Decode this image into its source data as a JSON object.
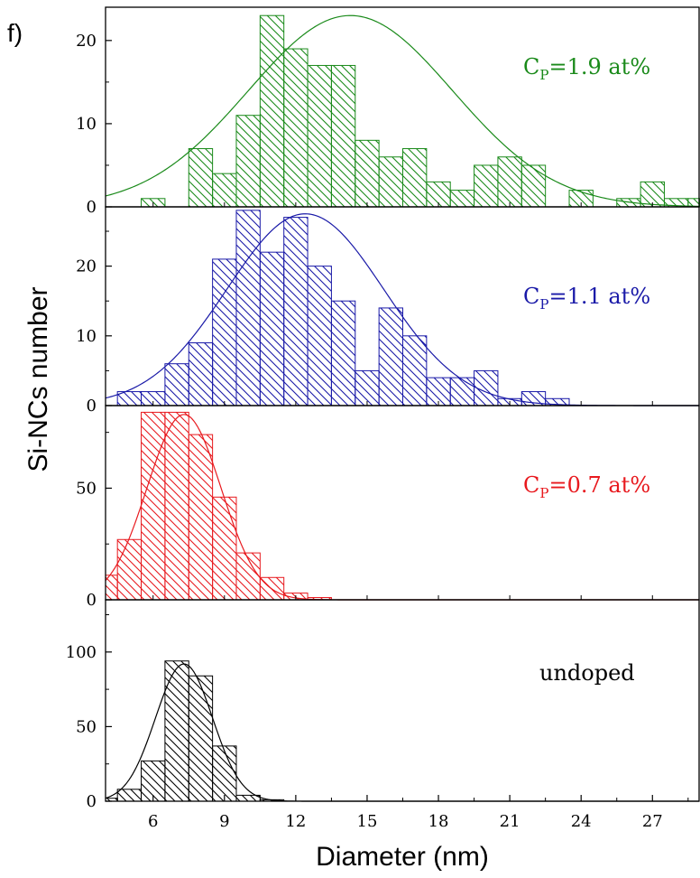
{
  "figure": {
    "panel_letter": "f)",
    "ylabel": "Si-NCs number",
    "xlabel": "Diameter (nm)"
  },
  "chart_data": [
    {
      "type": "bar",
      "name": "C_P=1.9 at%",
      "annotation": {
        "base": "C",
        "sub": "P",
        "rest": "=1.9 at%"
      },
      "color": "#1a8a1a",
      "xlim": [
        4,
        29
      ],
      "ylim": [
        0,
        24
      ],
      "yticks": [
        0,
        10,
        20
      ],
      "yminor": [
        5,
        15
      ],
      "bin_width": 1,
      "x": [
        6,
        8,
        9,
        10,
        11,
        12,
        13,
        14,
        15,
        16,
        17,
        18,
        19,
        20,
        21,
        22,
        24,
        26,
        27,
        28,
        29
      ],
      "values": [
        1,
        7,
        4,
        11,
        23,
        19,
        17,
        17,
        8,
        6,
        7,
        3,
        2,
        5,
        6,
        5,
        2,
        1,
        3,
        1,
        1
      ],
      "fit": {
        "center": 14.3,
        "sigma": 4.3,
        "amplitude": 23
      }
    },
    {
      "type": "bar",
      "name": "C_P=1.1 at%",
      "annotation": {
        "base": "C",
        "sub": "P",
        "rest": "=1.1 at%"
      },
      "color": "#1a1aa8",
      "xlim": [
        4,
        29
      ],
      "ylim": [
        0,
        28.5
      ],
      "yticks": [
        0,
        10,
        20
      ],
      "yminor": [
        5,
        15,
        25
      ],
      "bin_width": 1,
      "x": [
        5,
        6,
        7,
        8,
        9,
        10,
        11,
        12,
        13,
        14,
        15,
        16,
        17,
        18,
        19,
        20,
        21,
        22,
        23
      ],
      "values": [
        2,
        2,
        6,
        9,
        21,
        28,
        22,
        27,
        20,
        15,
        5,
        14,
        10,
        4,
        4,
        5,
        1,
        2,
        1
      ],
      "fit": {
        "center": 12.4,
        "sigma": 3.3,
        "amplitude": 27.5
      }
    },
    {
      "type": "bar",
      "name": "C_P=0.7 at%",
      "annotation": {
        "base": "C",
        "sub": "P",
        "rest": "=0.7 at%"
      },
      "color": "#e8191e",
      "xlim": [
        4,
        29
      ],
      "ylim": [
        0,
        87
      ],
      "yticks": [
        0,
        50
      ],
      "yminor": [
        25,
        75
      ],
      "bin_width": 1,
      "x": [
        4,
        5,
        6,
        7,
        8,
        9,
        10,
        11,
        12,
        13
      ],
      "values": [
        11,
        27,
        84,
        84,
        74,
        46,
        21,
        10,
        3,
        1
      ],
      "fit": {
        "center": 7.3,
        "sigma": 1.55,
        "amplitude": 83
      }
    },
    {
      "type": "bar",
      "name": "undoped",
      "annotation": {
        "base": "undoped",
        "sub": "",
        "rest": ""
      },
      "color": "#000000",
      "xlim": [
        4,
        29
      ],
      "ylim": [
        0,
        135
      ],
      "yticks": [
        0,
        50,
        100
      ],
      "yminor": [
        25,
        75,
        125
      ],
      "bin_width": 1,
      "x": [
        4,
        5,
        6,
        7,
        8,
        9,
        10,
        11
      ],
      "values": [
        2,
        8,
        27,
        94,
        84,
        37,
        4,
        1
      ],
      "fit": {
        "center": 7.3,
        "sigma": 1.2,
        "amplitude": 92
      }
    }
  ],
  "xaxis": {
    "ticks": [
      6,
      9,
      12,
      15,
      18,
      21,
      24,
      27
    ],
    "minor": [
      4.5,
      7.5,
      10.5,
      13.5,
      16.5,
      19.5,
      22.5,
      25.5,
      28.5
    ]
  }
}
